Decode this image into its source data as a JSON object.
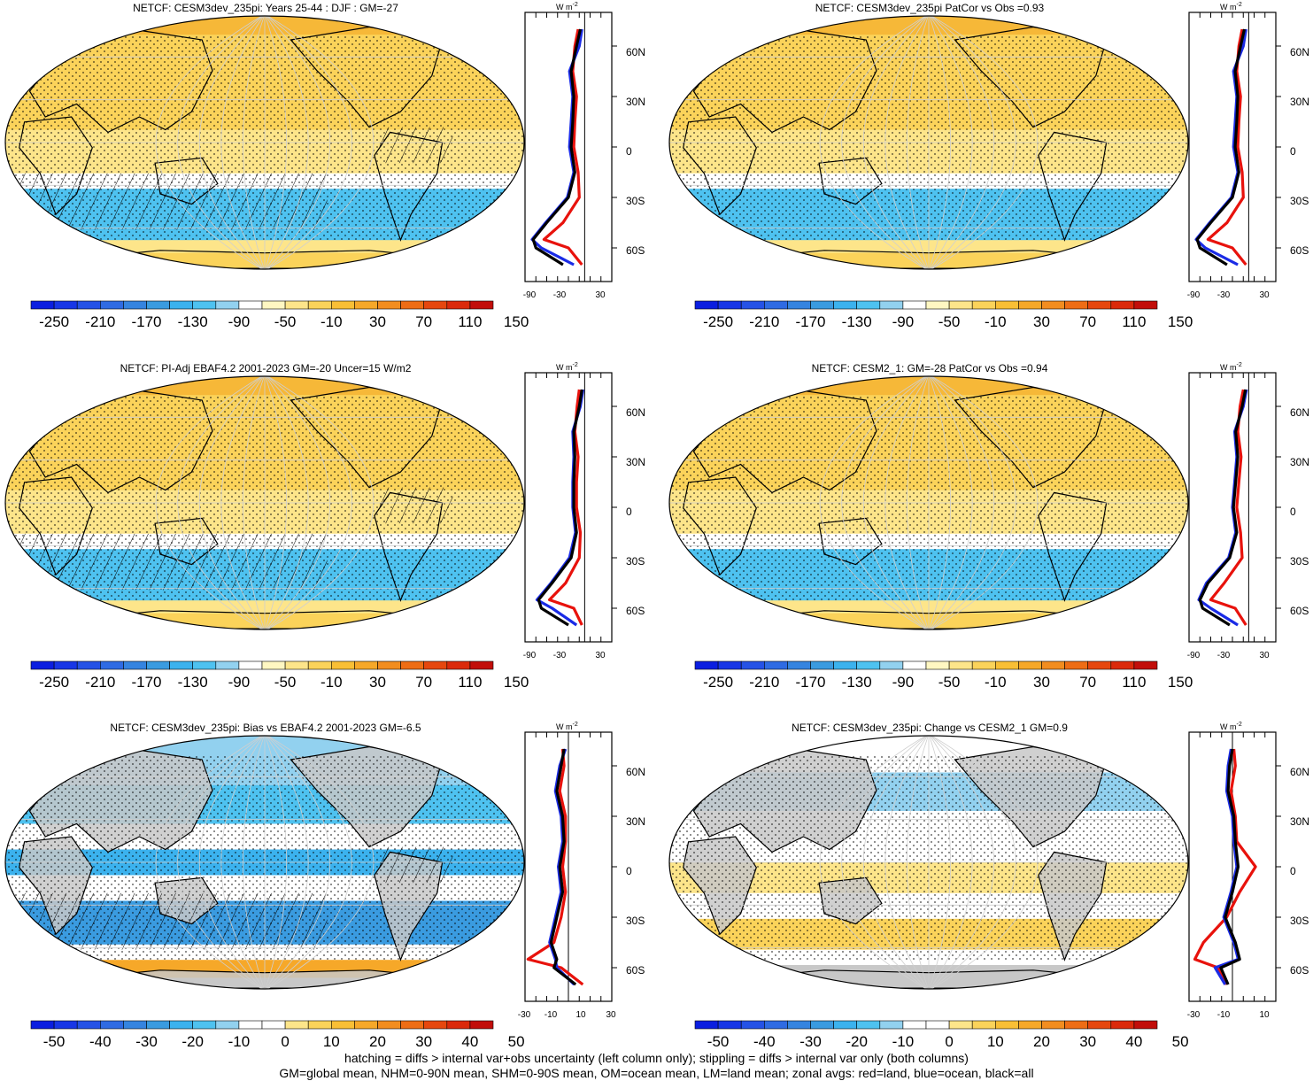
{
  "palette_main": [
    "#0b1ee0",
    "#1836e6",
    "#2552e6",
    "#2f6be3",
    "#3584e0",
    "#3a9be0",
    "#3bb2ee",
    "#4ec2f0",
    "#92d1ef",
    "#ffffff",
    "#fff7c2",
    "#fde58a",
    "#fbd35a",
    "#f9bf35",
    "#f6a829",
    "#f28d1f",
    "#ee6d15",
    "#e6470e",
    "#db2a0b",
    "#c20e0a"
  ],
  "palette_diff": [
    "#0b1ee0",
    "#1836e6",
    "#2552e6",
    "#2f6be3",
    "#3584e0",
    "#3a9be0",
    "#3bb2ee",
    "#4ec2f0",
    "#92d1ef",
    "#ffffff",
    "#ffffff",
    "#fde58a",
    "#fbd35a",
    "#f9bf35",
    "#f6a829",
    "#f28d1f",
    "#ee6d15",
    "#e6470e",
    "#db2a0b",
    "#c20e0a"
  ],
  "colorbar_main_labels": [
    "-250",
    "-210",
    "-170",
    "-130",
    "-90",
    "-50",
    "-10",
    "30",
    "70",
    "110",
    "150"
  ],
  "colorbar_diff_labels": [
    "-50",
    "-40",
    "-30",
    "-20",
    "-10",
    "0",
    "10",
    "20",
    "30",
    "40",
    "50"
  ],
  "zonal_unit": "W m",
  "zonal_unit_exp": "-2",
  "lat_labels": [
    "60N",
    "30N",
    "0",
    "30S",
    "60S"
  ],
  "zonal_x_main": [
    "-90",
    "-30",
    "30"
  ],
  "zonal_x_diff_left": [
    "-30",
    "-10",
    "10",
    "30"
  ],
  "zonal_x_diff_right": [
    "-30",
    "-10",
    "10"
  ],
  "footer_line1": "hatching = diffs > internal var+obs uncertainty (left column only); stippling = diffs > internal var only (both columns)",
  "footer_line2": "GM=global mean, NHM=0-90N mean, SHM=0-90S mean, OM=ocean mean, LM=land mean; zonal avgs: red=land, blue=ocean, black=all",
  "panels": [
    {
      "title": "NETCF: CESM3dev_235pi: Years 25-44 : DJF : GM=-27",
      "kind": "main",
      "chart_data": {
        "type": "heatmap",
        "variable": "NETCF",
        "units": "W m-2",
        "global_mean": -27,
        "zonal_mean_lat": [
          70,
          60,
          45,
          30,
          15,
          0,
          -15,
          -30,
          -45,
          -55,
          -60,
          -70
        ],
        "zonal_all": [
          -8,
          -15,
          -25,
          -20,
          -22,
          -25,
          -18,
          -30,
          -70,
          -95,
          -90,
          -40
        ],
        "zonal_ocean": [
          -5,
          -10,
          -28,
          -22,
          -25,
          -28,
          -20,
          -32,
          -72,
          -97,
          -80,
          -20
        ],
        "zonal_land": [
          -12,
          -18,
          -22,
          -15,
          -18,
          -20,
          -12,
          -10,
          -40,
          -75,
          -30,
          -5
        ]
      }
    },
    {
      "title": "NETCF: CESM3dev_235pi PatCor vs Obs =0.93",
      "kind": "main",
      "chart_data": {
        "type": "heatmap",
        "variable": "NETCF",
        "units": "W m-2",
        "pattern_correlation": 0.93,
        "zonal_mean_lat": [
          70,
          60,
          45,
          30,
          15,
          0,
          -15,
          -30,
          -45,
          -55,
          -60,
          -70
        ],
        "zonal_all": [
          -8,
          -15,
          -25,
          -20,
          -22,
          -25,
          -18,
          -30,
          -70,
          -95,
          -90,
          -40
        ],
        "zonal_ocean": [
          -5,
          -10,
          -28,
          -22,
          -25,
          -28,
          -20,
          -32,
          -72,
          -97,
          -80,
          -20
        ],
        "zonal_land": [
          -12,
          -18,
          -22,
          -15,
          -18,
          -20,
          -12,
          -10,
          -40,
          -75,
          -30,
          -5
        ]
      }
    },
    {
      "title": "NETCF: PI-Adj EBAF4.2 2001-2023 GM=-20 Uncer=15 W/m2",
      "kind": "main",
      "chart_data": {
        "type": "heatmap",
        "variable": "NETCF",
        "units": "W m-2",
        "global_mean": -20,
        "uncertainty": 15,
        "zonal_mean_lat": [
          70,
          60,
          45,
          30,
          15,
          0,
          -15,
          -30,
          -45,
          -55,
          -60,
          -70
        ],
        "zonal_all": [
          -5,
          -10,
          -20,
          -18,
          -20,
          -20,
          -15,
          -25,
          -60,
          -85,
          -80,
          -30
        ],
        "zonal_ocean": [
          -3,
          -8,
          -22,
          -20,
          -22,
          -22,
          -17,
          -28,
          -62,
          -88,
          -60,
          -15
        ],
        "zonal_land": [
          -10,
          -14,
          -18,
          -12,
          -15,
          -15,
          -8,
          -10,
          -35,
          -65,
          -20,
          -5
        ]
      }
    },
    {
      "title": "NETCF: CESM2_1: GM=-28 PatCor vs Obs =0.94",
      "kind": "main",
      "chart_data": {
        "type": "heatmap",
        "variable": "NETCF",
        "units": "W m-2",
        "global_mean": -28,
        "pattern_correlation": 0.94,
        "zonal_mean_lat": [
          70,
          60,
          45,
          30,
          15,
          0,
          -15,
          -30,
          -45,
          -55,
          -60,
          -70
        ],
        "zonal_all": [
          -6,
          -12,
          -24,
          -20,
          -24,
          -28,
          -22,
          -35,
          -75,
          -90,
          -85,
          -35
        ],
        "zonal_ocean": [
          -4,
          -10,
          -26,
          -22,
          -26,
          -30,
          -24,
          -37,
          -78,
          -92,
          -70,
          -20
        ],
        "zonal_land": [
          -10,
          -16,
          -20,
          -14,
          -18,
          -22,
          -15,
          -12,
          -45,
          -70,
          -25,
          -5
        ]
      }
    },
    {
      "title": "NETCF: CESM3dev_235pi: Bias vs EBAF4.2 2001-2023 GM=-6.5",
      "kind": "diff",
      "chart_data": {
        "type": "heatmap",
        "variable": "NETCF bias",
        "units": "W m-2",
        "global_mean": -6.5,
        "zonal_mean_lat": [
          70,
          60,
          45,
          30,
          15,
          0,
          -15,
          -30,
          -45,
          -55,
          -60,
          -70
        ],
        "zonal_all": [
          -3,
          -5,
          -8,
          -4,
          -3,
          -6,
          -4,
          -8,
          -12,
          -8,
          -10,
          5
        ],
        "zonal_ocean": [
          -2,
          -6,
          -9,
          -5,
          -4,
          -7,
          -5,
          -9,
          -13,
          -9,
          -8,
          4
        ],
        "zonal_land": [
          -4,
          -3,
          -6,
          -2,
          -2,
          -4,
          -2,
          -5,
          -10,
          -28,
          -5,
          10
        ]
      }
    },
    {
      "title": "NETCF: CESM3dev_235pi: Change vs CESM2_1 GM=0.9",
      "kind": "diff",
      "chart_data": {
        "type": "heatmap",
        "variable": "NETCF change",
        "units": "W m-2",
        "global_mean": 0.9,
        "zonal_mean_lat": [
          70,
          60,
          45,
          30,
          15,
          0,
          -15,
          -30,
          -45,
          -55,
          -60,
          -70
        ],
        "zonal_all": [
          0,
          -2,
          -3,
          1,
          2,
          4,
          0,
          -5,
          2,
          5,
          -8,
          -3
        ],
        "zonal_ocean": [
          -1,
          -3,
          -4,
          0,
          1,
          3,
          -1,
          -6,
          1,
          4,
          -12,
          -5
        ],
        "zonal_land": [
          1,
          2,
          -1,
          2,
          3,
          16,
          5,
          -4,
          -20,
          -26,
          -10,
          -4
        ]
      }
    }
  ]
}
